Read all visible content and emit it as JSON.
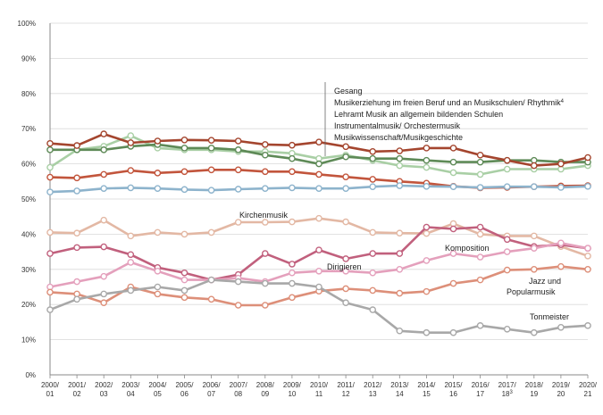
{
  "chart_data": {
    "type": "line",
    "title": "",
    "xlabel": "",
    "ylabel": "",
    "ylim": [
      0,
      100
    ],
    "yticks": [
      "0%",
      "10%",
      "20%",
      "30%",
      "40%",
      "50%",
      "60%",
      "70%",
      "80%",
      "90%",
      "100%"
    ],
    "categories": [
      {
        "top": "2000/",
        "bottom": "01"
      },
      {
        "top": "2001/",
        "bottom": "02"
      },
      {
        "top": "2002/",
        "bottom": "03"
      },
      {
        "top": "2003/",
        "bottom": "04"
      },
      {
        "top": "2004/",
        "bottom": "05"
      },
      {
        "top": "2005/",
        "bottom": "06"
      },
      {
        "top": "2006/",
        "bottom": "07"
      },
      {
        "top": "2007/",
        "bottom": "08"
      },
      {
        "top": "2008/",
        "bottom": "09"
      },
      {
        "top": "2009/",
        "bottom": "10"
      },
      {
        "top": "2010/",
        "bottom": "11"
      },
      {
        "top": "2011/",
        "bottom": "12"
      },
      {
        "top": "2012/",
        "bottom": "13"
      },
      {
        "top": "2013/",
        "bottom": "14"
      },
      {
        "top": "2014/",
        "bottom": "15"
      },
      {
        "top": "2015/",
        "bottom": "16"
      },
      {
        "top": "2016/",
        "bottom": "17"
      },
      {
        "top": "2017/",
        "bottom": "18",
        "sup": "3"
      },
      {
        "top": "2018/",
        "bottom": "19"
      },
      {
        "top": "2019/",
        "bottom": "20"
      },
      {
        "top": "2020/",
        "bottom": "21"
      }
    ],
    "legend": {
      "entries": [
        {
          "text": "Gesang"
        },
        {
          "text": "Musikerziehung im freien Beruf und an Musikschulen/ Rhythmik",
          "sup": "4"
        },
        {
          "text": "Lehramt Musik an allgemein bildenden Schulen"
        },
        {
          "text": "Instrumentalmusik/ Orchestermusik"
        },
        {
          "text": "Musikwissenschaft/Musikgeschichte"
        }
      ]
    },
    "series": [
      {
        "name": "Gesang",
        "color": "#a9cfa5",
        "values": [
          59,
          64,
          65,
          68,
          64.5,
          64,
          64,
          63.5,
          63.5,
          63,
          61.5,
          62.5,
          61,
          59.5,
          59,
          57.5,
          57,
          58.5,
          58.5,
          58.5,
          59.5
        ]
      },
      {
        "name": "Lehramt Musik an allgemein bildenden Schulen",
        "color": "#5e8a57",
        "values": [
          64,
          64,
          64,
          65,
          65.5,
          64.5,
          64.5,
          64,
          62.5,
          61.5,
          60,
          62,
          61.5,
          61.5,
          61,
          60.5,
          60.5,
          61,
          61,
          60.5,
          60.5
        ]
      },
      {
        "name": "Musikwissenschaft/Musikgeschichte",
        "color": "#a4452e",
        "values": [
          65.8,
          65.2,
          68.5,
          66,
          66.5,
          66.8,
          66.7,
          66.5,
          65.5,
          65.3,
          66.2,
          64.9,
          63.5,
          63.7,
          64.5,
          64.5,
          62.5,
          61,
          59.5,
          60,
          61.8
        ]
      },
      {
        "name": "Instrumentalmusik/ Orchestermusik",
        "color": "#c2553c",
        "values": [
          56.2,
          56,
          57,
          58.1,
          57.4,
          57.8,
          58.3,
          58.3,
          57.8,
          57.8,
          57,
          56.3,
          55.6,
          55,
          54.5,
          53.6,
          53.2,
          53.3,
          53.5,
          53.7,
          53.8
        ]
      },
      {
        "name": "Musikerziehung im freien Beruf und an Musikschulen/ Rhythmik",
        "color": "#8db3cc",
        "values": [
          52,
          52.3,
          53,
          53.2,
          53,
          52.7,
          52.5,
          52.8,
          53,
          53.2,
          53,
          53,
          53.5,
          53.8,
          53.6,
          53.5,
          53.3,
          53.5,
          53.5,
          53.3,
          53.6
        ]
      },
      {
        "name": "Kirchenmusik",
        "color": "#e3b8a4",
        "values": [
          40.5,
          40.3,
          44,
          39.5,
          40.5,
          40,
          40.5,
          43.4,
          43.4,
          43.5,
          44.5,
          43.5,
          40.5,
          40.3,
          40.2,
          43,
          40,
          39.5,
          39.5,
          36.5,
          33.8
        ]
      },
      {
        "name": "Dirigieren",
        "color": "#c1607d",
        "values": [
          34.5,
          36.2,
          36.4,
          34.2,
          30.5,
          29,
          27,
          28.5,
          34.5,
          31.5,
          35.5,
          33,
          34.5,
          34.5,
          42,
          41.5,
          42,
          38.5,
          36.5,
          37,
          36
        ]
      },
      {
        "name": "Komposition",
        "color": "#e4a0bc",
        "values": [
          25,
          26.5,
          28,
          32,
          29.5,
          27,
          27,
          27.5,
          26.5,
          29,
          29.5,
          29.5,
          29,
          30,
          32.5,
          34.5,
          33.5,
          35,
          36,
          37.5,
          36
        ]
      },
      {
        "name": "Jazz und Popularmusik",
        "color": "#dd8f79",
        "values": [
          23.5,
          23,
          20.5,
          25,
          23,
          22,
          21.5,
          19.8,
          19.8,
          22,
          23.8,
          24.5,
          24,
          23.2,
          23.7,
          26,
          27,
          29.8,
          30,
          30.8,
          30
        ]
      },
      {
        "name": "Tonmeister",
        "color": "#a8a8a8",
        "values": [
          18.5,
          21.5,
          23,
          24,
          25,
          24,
          27,
          26.5,
          26,
          26,
          25,
          20.5,
          18.5,
          12.5,
          12,
          12,
          14,
          13,
          12,
          13.5,
          14
        ]
      }
    ],
    "annotations": [
      {
        "text": "Kirchenmusik"
      },
      {
        "text": "Dirigieren"
      },
      {
        "text": "Komposition"
      },
      {
        "text": "Jazz und"
      },
      {
        "text": "Popularmusik"
      },
      {
        "text": "Tonmeister"
      }
    ]
  }
}
